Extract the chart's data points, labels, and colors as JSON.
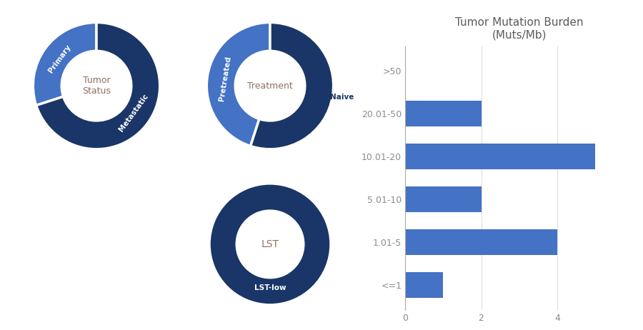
{
  "background_color": "#ffffff",
  "donut1": {
    "label": "Tumor\nStatus",
    "slices": [
      30,
      70
    ],
    "slice_labels": [
      "Primary",
      "Metastatic"
    ],
    "colors": [
      "#4472c4",
      "#1a3668"
    ],
    "start_angle": 90
  },
  "donut2": {
    "label": "Treatment",
    "slices": [
      45,
      55
    ],
    "slice_labels": [
      "Pretreated",
      "Naive"
    ],
    "colors": [
      "#4472c4",
      "#1a3668"
    ],
    "start_angle": 90
  },
  "donut3": {
    "label": "LST",
    "slices": [
      100
    ],
    "slice_labels": [
      "LST-low"
    ],
    "colors": [
      "#1a3668"
    ],
    "start_angle": 90
  },
  "bar_title": "Tumor Mutation Burden\n(Muts/Mb)",
  "bar_categories": [
    ">50",
    "20.01-50",
    "10.01-20",
    "5.01-10",
    "1.01-5",
    "<=1"
  ],
  "bar_values": [
    0,
    2,
    5,
    2,
    4,
    1
  ],
  "bar_color": "#4472c4",
  "bar_title_color": "#5b5b5b",
  "bar_tick_color": "#8c8c8c",
  "center_label_color": "#8c7060",
  "donut_wedge_linewidth": 2.5
}
